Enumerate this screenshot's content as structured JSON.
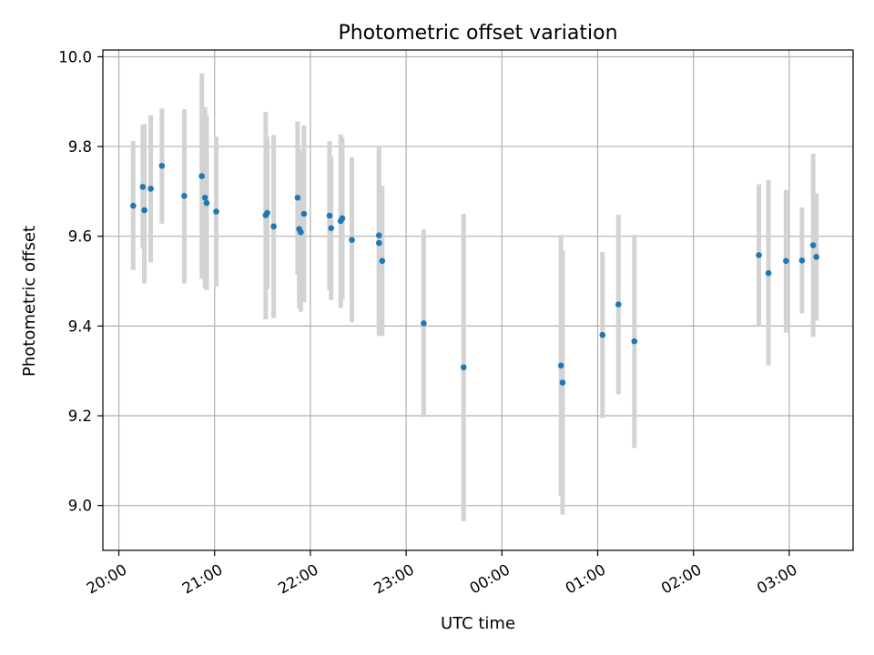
{
  "chart_data": {
    "type": "scatter",
    "title": "Photometric offset variation",
    "xlabel": "UTC time",
    "ylabel": "Photometric offset",
    "ylim": [
      8.9,
      10.015
    ],
    "xlim": [
      "19:50",
      "03:40"
    ],
    "x_tick_labels": [
      "20:00",
      "21:00",
      "22:00",
      "23:00",
      "00:00",
      "01:00",
      "02:00",
      "03:00"
    ],
    "x_ticks": [
      "20:00",
      "21:00",
      "22:00",
      "23:00",
      "00:00",
      "01:00",
      "02:00",
      "03:00"
    ],
    "y_ticks": [
      9.0,
      9.2,
      9.4,
      9.6,
      9.8,
      10.0
    ],
    "y_tick_labels": [
      "9.0",
      "9.2",
      "9.4",
      "9.6",
      "9.8",
      "10.0"
    ],
    "grid": true,
    "series_color": "#1f77b4",
    "errorbar_color": "#d3d3d3",
    "points": [
      {
        "x": "20:09",
        "y": 9.668,
        "ylo": 9.525,
        "yhi": 9.812
      },
      {
        "x": "20:15",
        "y": 9.71,
        "ylo": 9.572,
        "yhi": 9.848
      },
      {
        "x": "20:16",
        "y": 9.658,
        "ylo": 9.495,
        "yhi": 9.85
      },
      {
        "x": "20:20",
        "y": 9.706,
        "ylo": 9.542,
        "yhi": 9.87
      },
      {
        "x": "20:27",
        "y": 9.757,
        "ylo": 9.628,
        "yhi": 9.885
      },
      {
        "x": "20:41",
        "y": 9.69,
        "ylo": 9.495,
        "yhi": 9.883
      },
      {
        "x": "20:52",
        "y": 9.734,
        "ylo": 9.505,
        "yhi": 9.963
      },
      {
        "x": "20:54",
        "y": 9.686,
        "ylo": 9.485,
        "yhi": 9.888
      },
      {
        "x": "20:55",
        "y": 9.674,
        "ylo": 9.48,
        "yhi": 9.868
      },
      {
        "x": "21:01",
        "y": 9.655,
        "ylo": 9.488,
        "yhi": 9.822
      },
      {
        "x": "21:32",
        "y": 9.647,
        "ylo": 9.415,
        "yhi": 9.877
      },
      {
        "x": "21:33",
        "y": 9.652,
        "ylo": 9.482,
        "yhi": 9.822
      },
      {
        "x": "21:37",
        "y": 9.622,
        "ylo": 9.418,
        "yhi": 9.826
      },
      {
        "x": "21:52",
        "y": 9.686,
        "ylo": 9.515,
        "yhi": 9.856
      },
      {
        "x": "21:53",
        "y": 9.616,
        "ylo": 9.44,
        "yhi": 9.793
      },
      {
        "x": "21:54",
        "y": 9.609,
        "ylo": 9.432,
        "yhi": 9.786
      },
      {
        "x": "21:56",
        "y": 9.65,
        "ylo": 9.453,
        "yhi": 9.847
      },
      {
        "x": "22:12",
        "y": 9.646,
        "ylo": 9.48,
        "yhi": 9.812
      },
      {
        "x": "22:13",
        "y": 9.618,
        "ylo": 9.458,
        "yhi": 9.778
      },
      {
        "x": "22:19",
        "y": 9.634,
        "ylo": 9.44,
        "yhi": 9.827
      },
      {
        "x": "22:20",
        "y": 9.64,
        "ylo": 9.46,
        "yhi": 9.82
      },
      {
        "x": "22:26",
        "y": 9.592,
        "ylo": 9.408,
        "yhi": 9.776
      },
      {
        "x": "22:43",
        "y": 9.602,
        "ylo": 9.405,
        "yhi": 9.8
      },
      {
        "x": "22:43",
        "y": 9.585,
        "ylo": 9.378,
        "yhi": 9.792
      },
      {
        "x": "22:45",
        "y": 9.545,
        "ylo": 9.378,
        "yhi": 9.712
      },
      {
        "x": "23:11",
        "y": 9.406,
        "ylo": 9.197,
        "yhi": 9.615
      },
      {
        "x": "23:36",
        "y": 9.308,
        "ylo": 8.965,
        "yhi": 9.65
      },
      {
        "x": "00:37",
        "y": 9.312,
        "ylo": 9.022,
        "yhi": 9.603
      },
      {
        "x": "00:38",
        "y": 9.274,
        "ylo": 8.98,
        "yhi": 9.568
      },
      {
        "x": "01:03",
        "y": 9.38,
        "ylo": 9.195,
        "yhi": 9.565
      },
      {
        "x": "01:13",
        "y": 9.448,
        "ylo": 9.248,
        "yhi": 9.648
      },
      {
        "x": "01:23",
        "y": 9.366,
        "ylo": 9.128,
        "yhi": 9.603
      },
      {
        "x": "02:41",
        "y": 9.558,
        "ylo": 9.4,
        "yhi": 9.716
      },
      {
        "x": "02:47",
        "y": 9.518,
        "ylo": 9.312,
        "yhi": 9.725
      },
      {
        "x": "02:58",
        "y": 9.545,
        "ylo": 9.385,
        "yhi": 9.703
      },
      {
        "x": "03:08",
        "y": 9.546,
        "ylo": 9.428,
        "yhi": 9.664
      },
      {
        "x": "03:15",
        "y": 9.58,
        "ylo": 9.376,
        "yhi": 9.784
      },
      {
        "x": "03:17",
        "y": 9.554,
        "ylo": 9.412,
        "yhi": 9.696
      }
    ]
  }
}
